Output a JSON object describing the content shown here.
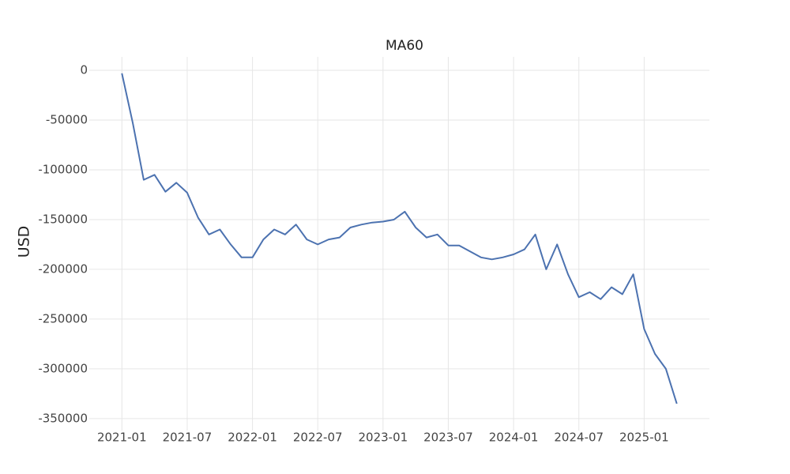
{
  "chart_data": {
    "type": "line",
    "title": "MA60",
    "y_label": "USD",
    "color": "#4c72b0",
    "grid": true,
    "x": [
      "2021-01",
      "2021-02",
      "2021-03",
      "2021-04",
      "2021-05",
      "2021-06",
      "2021-07",
      "2021-08",
      "2021-09",
      "2021-10",
      "2021-11",
      "2021-12",
      "2022-01",
      "2022-02",
      "2022-03",
      "2022-04",
      "2022-05",
      "2022-06",
      "2022-07",
      "2022-08",
      "2022-09",
      "2022-10",
      "2022-11",
      "2022-12",
      "2023-01",
      "2023-02",
      "2023-03",
      "2023-04",
      "2023-05",
      "2023-06",
      "2023-07",
      "2023-08",
      "2023-09",
      "2023-10",
      "2023-11",
      "2023-12",
      "2024-01",
      "2024-02",
      "2024-03",
      "2024-04",
      "2024-05",
      "2024-06",
      "2024-07",
      "2024-08",
      "2024-09",
      "2024-10",
      "2024-11",
      "2024-12",
      "2025-01",
      "2025-02",
      "2025-03",
      "2025-04"
    ],
    "values": [
      -3000,
      -53000,
      -110000,
      -105000,
      -122000,
      -113000,
      -123000,
      -148000,
      -165000,
      -160000,
      -175000,
      -188000,
      -188000,
      -170000,
      -160000,
      -165000,
      -155000,
      -170000,
      -175000,
      -170000,
      -168000,
      -158000,
      -155000,
      -153000,
      -152000,
      -150000,
      -142000,
      -158000,
      -168000,
      -165000,
      -176000,
      -176000,
      -182000,
      -188000,
      -190000,
      -188000,
      -185000,
      -180000,
      -165000,
      -200000,
      -175000,
      -205000,
      -228000,
      -223000,
      -230000,
      -218000,
      -225000,
      -205000,
      -260000,
      -285000,
      -300000,
      -335000
    ],
    "xlim": [
      "2020-10",
      "2025-07"
    ],
    "xticks": [
      "2021-01",
      "2021-07",
      "2022-01",
      "2022-07",
      "2023-01",
      "2023-07",
      "2024-01",
      "2024-07",
      "2025-01"
    ],
    "ylim": [
      -362000,
      13500
    ],
    "yticks": [
      0,
      -50000,
      -100000,
      -150000,
      -200000,
      -250000,
      -300000,
      -350000
    ]
  }
}
